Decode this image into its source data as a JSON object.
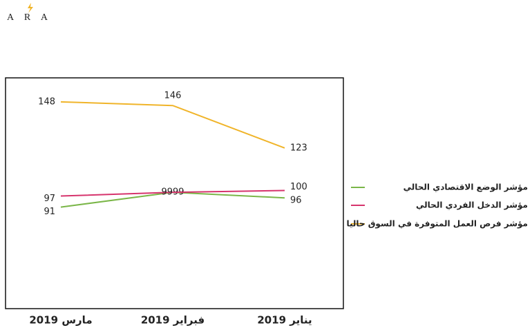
{
  "logo": "A R A",
  "chart_data": {
    "type": "line",
    "categories": [
      "مارس 2019",
      "فبراير 2019",
      "يناير 2019"
    ],
    "series": [
      {
        "name": "مؤشر الوضع الاقتصادي الحالي",
        "color": "#7ab648",
        "values": [
          91,
          99,
          96
        ]
      },
      {
        "name": "مؤشر الدخل الفردي الحالي",
        "color": "#d6336c",
        "values": [
          97,
          99,
          100
        ]
      },
      {
        "name": "مؤشر فرص العمل المتوفرة في السوق حاليا",
        "color": "#f0b429",
        "values": [
          148,
          146,
          123
        ]
      }
    ],
    "ylim": [
      36,
      161
    ],
    "legend": "right"
  }
}
